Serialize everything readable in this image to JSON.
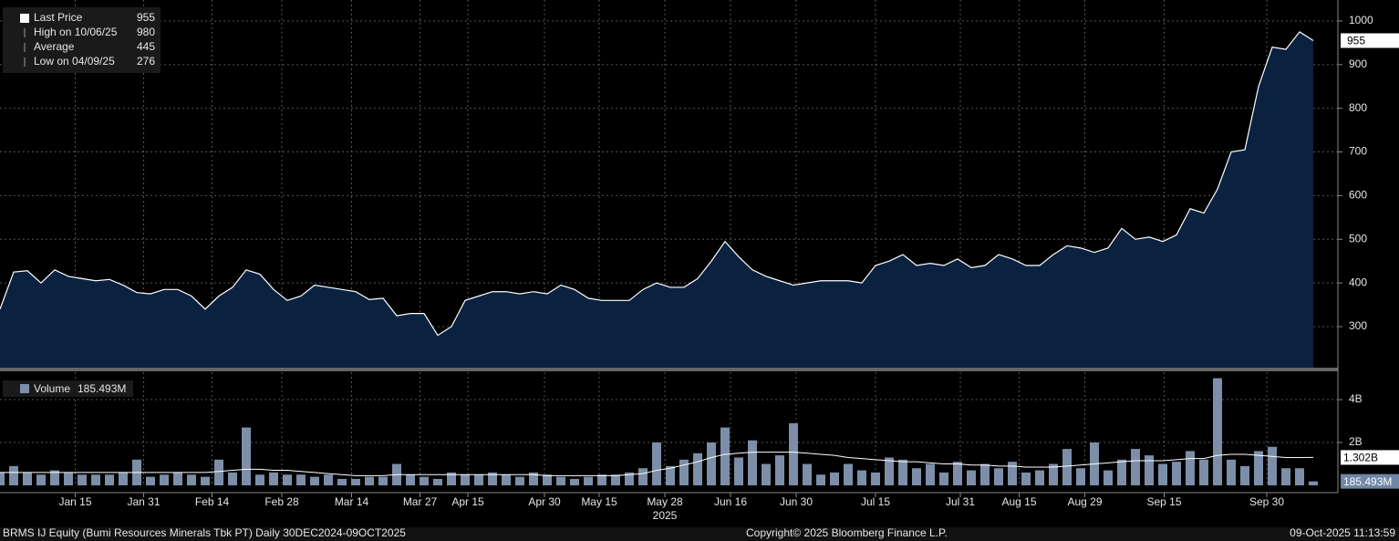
{
  "chart_data": [
    {
      "type": "area",
      "ylim": [
        206,
        1048
      ],
      "yticks": [
        300,
        400,
        500,
        600,
        700,
        800,
        900,
        1000
      ],
      "grid": true,
      "series": [
        {
          "name": "Last Price",
          "color": "#ffffff",
          "fill": "#0b2140",
          "values": [
            340,
            425,
            428,
            400,
            430,
            415,
            410,
            405,
            408,
            395,
            378,
            375,
            385,
            385,
            370,
            340,
            370,
            390,
            430,
            420,
            385,
            360,
            370,
            395,
            390,
            385,
            380,
            362,
            365,
            325,
            330,
            330,
            280,
            300,
            360,
            370,
            380,
            380,
            375,
            380,
            375,
            395,
            385,
            365,
            360,
            360,
            360,
            385,
            400,
            390,
            390,
            410,
            450,
            495,
            460,
            430,
            415,
            405,
            395,
            400,
            405,
            405,
            405,
            400,
            440,
            450,
            465,
            440,
            445,
            440,
            455,
            435,
            440,
            465,
            455,
            440,
            440,
            465,
            485,
            480,
            470,
            480,
            525,
            500,
            505,
            495,
            510,
            570,
            560,
            615,
            700,
            705,
            850,
            940,
            935,
            975,
            955
          ]
        }
      ],
      "legend": [
        {
          "label": "Last Price",
          "value": 955
        },
        {
          "label": "High on 10/06/25",
          "value": 980
        },
        {
          "label": "Average",
          "value": 445
        },
        {
          "label": "Low on 04/09/25",
          "value": 276
        }
      ]
    },
    {
      "type": "bar",
      "ylim": [
        0,
        5.28
      ],
      "yticks": [
        {
          "value": 2,
          "label": "2B"
        },
        {
          "value": 4,
          "label": "4B"
        }
      ],
      "grid": true,
      "series": [
        {
          "name": "Volume",
          "kind": "bar",
          "color": "#7d8ea8",
          "last_label": "185.493M",
          "values": [
            0.6,
            0.9,
            0.6,
            0.5,
            0.7,
            0.6,
            0.5,
            0.5,
            0.5,
            0.6,
            1.2,
            0.4,
            0.5,
            0.6,
            0.5,
            0.4,
            1.2,
            0.6,
            2.7,
            0.5,
            0.6,
            0.5,
            0.5,
            0.4,
            0.5,
            0.3,
            0.3,
            0.4,
            0.4,
            1.0,
            0.5,
            0.4,
            0.3,
            0.6,
            0.5,
            0.5,
            0.6,
            0.5,
            0.4,
            0.6,
            0.5,
            0.4,
            0.3,
            0.4,
            0.5,
            0.5,
            0.6,
            0.8,
            2.0,
            0.9,
            1.2,
            1.5,
            2.0,
            2.7,
            1.3,
            2.1,
            1.0,
            1.4,
            2.9,
            1.0,
            0.5,
            0.6,
            1.0,
            0.7,
            0.6,
            1.3,
            1.2,
            0.8,
            1.0,
            0.6,
            1.1,
            0.7,
            1.0,
            0.8,
            1.1,
            0.6,
            0.7,
            1.0,
            1.7,
            0.8,
            2.0,
            0.7,
            1.2,
            1.7,
            1.4,
            1.0,
            1.1,
            1.6,
            1.2,
            5.0,
            1.2,
            0.9,
            1.6,
            1.8,
            0.8,
            0.8,
            0.185493
          ]
        },
        {
          "kind": "line",
          "color": "#ffffff",
          "last_label": "1.302B",
          "values": [
            0.6,
            0.6,
            0.6,
            0.6,
            0.6,
            0.6,
            0.6,
            0.6,
            0.6,
            0.6,
            0.6,
            0.6,
            0.6,
            0.6,
            0.6,
            0.6,
            0.65,
            0.7,
            0.75,
            0.75,
            0.7,
            0.7,
            0.65,
            0.6,
            0.55,
            0.5,
            0.45,
            0.45,
            0.45,
            0.5,
            0.5,
            0.5,
            0.5,
            0.5,
            0.5,
            0.5,
            0.5,
            0.5,
            0.5,
            0.5,
            0.45,
            0.45,
            0.45,
            0.45,
            0.45,
            0.45,
            0.5,
            0.55,
            0.7,
            0.8,
            0.95,
            1.1,
            1.3,
            1.45,
            1.5,
            1.55,
            1.55,
            1.55,
            1.55,
            1.5,
            1.45,
            1.4,
            1.3,
            1.25,
            1.2,
            1.15,
            1.1,
            1.1,
            1.05,
            1.0,
            1.0,
            0.95,
            0.95,
            0.9,
            0.9,
            0.85,
            0.85,
            0.85,
            0.9,
            0.95,
            1.0,
            1.05,
            1.1,
            1.15,
            1.15,
            1.15,
            1.2,
            1.25,
            1.25,
            1.4,
            1.45,
            1.45,
            1.4,
            1.35,
            1.3,
            1.3,
            1.302
          ]
        }
      ],
      "xticks": [
        {
          "value": 5.5,
          "label": "Jan 15"
        },
        {
          "value": 10.5,
          "label": "Jan 31"
        },
        {
          "value": 15.5,
          "label": "Feb 14"
        },
        {
          "value": 20.6,
          "label": "Feb 28"
        },
        {
          "value": 25.7,
          "label": "Mar 14"
        },
        {
          "value": 30.7,
          "label": "Mar 27"
        },
        {
          "value": 34.2,
          "label": "Apr 15"
        },
        {
          "value": 39.8,
          "label": "Apr 30"
        },
        {
          "value": 43.8,
          "label": "May 15"
        },
        {
          "value": 48.6,
          "label": "May 28"
        },
        {
          "value": 53.4,
          "label": "Jun 16"
        },
        {
          "value": 58.2,
          "label": "Jun 30"
        },
        {
          "value": 64,
          "label": "Jul 15"
        },
        {
          "value": 70.2,
          "label": "Jul 31"
        },
        {
          "value": 74.5,
          "label": "Aug 15"
        },
        {
          "value": 79.3,
          "label": "Aug 29"
        },
        {
          "value": 85.1,
          "label": "Sep 15"
        },
        {
          "value": 92.6,
          "label": "Sep 30"
        }
      ],
      "xticks_year": [
        {
          "value": 48.6,
          "label": "2025"
        }
      ]
    }
  ],
  "footer": {
    "left": "BRMS IJ Equity (Bumi Resources Minerals Tbk PT) Daily 30DEC2024-09OCT2025",
    "center": "Copyright© 2025 Bloomberg Finance L.P.",
    "right": "09-Oct-2025 11:13:59"
  }
}
